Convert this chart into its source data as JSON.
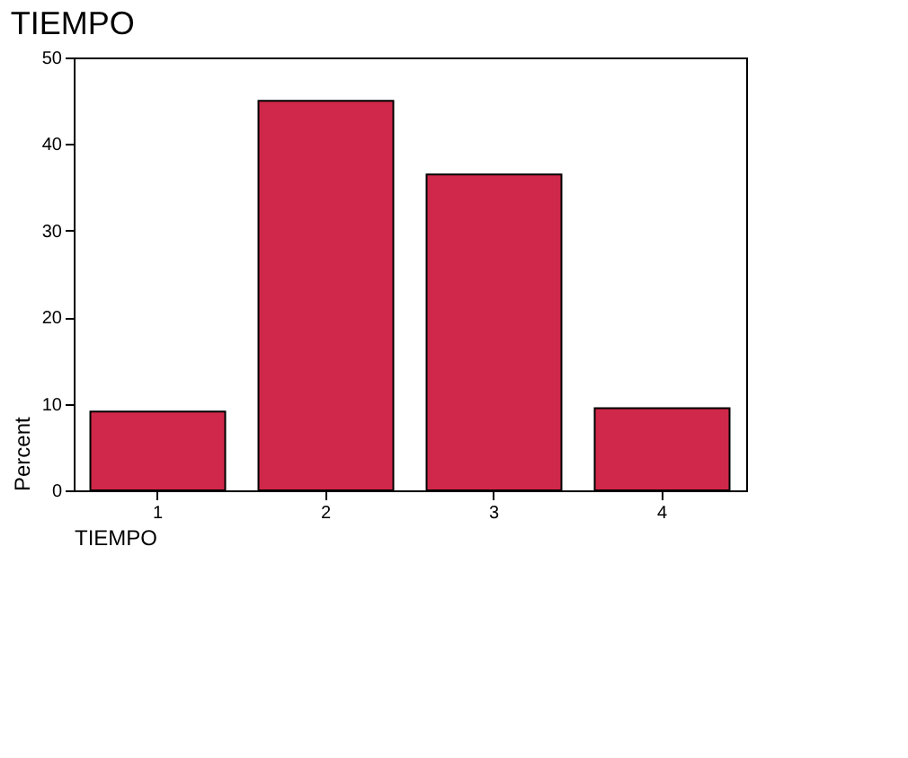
{
  "chart_data": {
    "type": "bar",
    "title": "TIEMPO",
    "xlabel": "TIEMPO",
    "ylabel": "Percent",
    "categories": [
      "1",
      "2",
      "3",
      "4"
    ],
    "values": [
      9.1,
      45.0,
      36.5,
      9.5
    ],
    "color": "#d0284a",
    "ylim": [
      0,
      50
    ],
    "yticks": [
      0,
      10,
      20,
      30,
      40,
      50
    ],
    "grid": false
  }
}
